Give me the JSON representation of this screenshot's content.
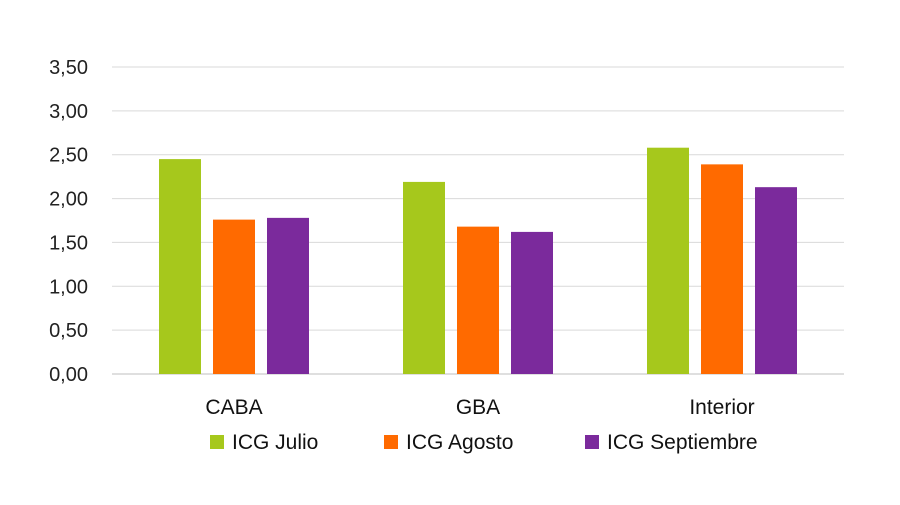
{
  "chart_data": {
    "type": "bar",
    "categories": [
      "CABA",
      "GBA",
      "Interior"
    ],
    "series": [
      {
        "name": "ICG Julio",
        "values": [
          2.45,
          2.19,
          2.58
        ],
        "color": "#a6c81c"
      },
      {
        "name": "ICG Agosto",
        "values": [
          1.76,
          1.68,
          2.39
        ],
        "color": "#ff6a00"
      },
      {
        "name": "ICG Septiembre",
        "values": [
          1.78,
          1.62,
          2.13
        ],
        "color": "#7b2a9c"
      }
    ],
    "yticks": [
      "0,00",
      "0,50",
      "1,00",
      "1,50",
      "2,00",
      "2,50",
      "3,00",
      "3,50"
    ],
    "ylim": [
      0,
      3.5
    ],
    "grid": true,
    "legend": "bottom",
    "title": "",
    "xlabel": "",
    "ylabel": ""
  }
}
